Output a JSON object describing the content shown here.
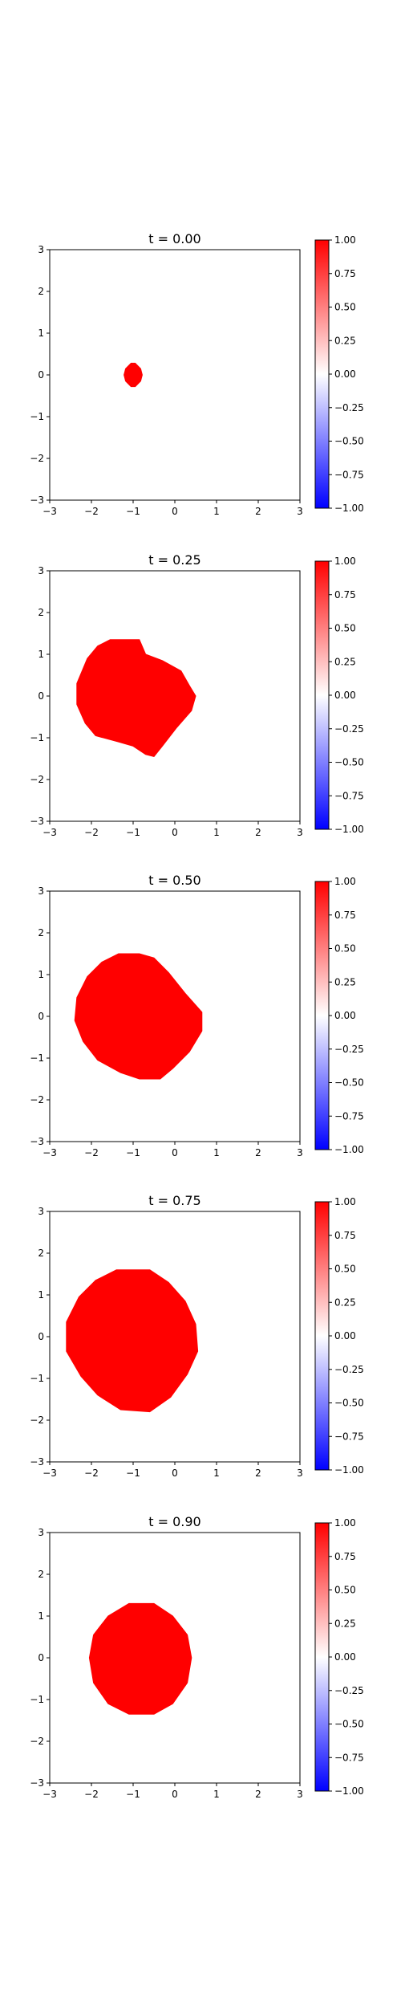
{
  "colorbar": {
    "cmap": [
      "#0000ff",
      "#ffffff",
      "#ff0000"
    ],
    "ticks": [
      1.0,
      0.75,
      0.5,
      0.25,
      0.0,
      -0.25,
      -0.5,
      -0.75,
      -1.0
    ],
    "tick_labels": [
      "1.00",
      "0.75",
      "0.50",
      "0.25",
      "0.00",
      "−0.25",
      "−0.50",
      "−0.75",
      "−1.00"
    ],
    "range": [
      -1.0,
      1.0
    ]
  },
  "chart_data": [
    {
      "type": "heatmap",
      "title": "t = 0.00",
      "xlim": [
        -3,
        3
      ],
      "ylim": [
        -3,
        3
      ],
      "xticks": [
        -3,
        -2,
        -1,
        0,
        1,
        2,
        3
      ],
      "yticks": [
        -3,
        -2,
        -1,
        0,
        1,
        2,
        3
      ],
      "xtick_labels": [
        "−3",
        "−2",
        "−1",
        "0",
        "1",
        "2",
        "3"
      ],
      "ytick_labels": [
        "−3",
        "−2",
        "−1",
        "0",
        "1",
        "2",
        "3"
      ],
      "value_inside": 1.0,
      "fill_color": "#ff0000",
      "region_outline": [
        [
          -1.05,
          0.28
        ],
        [
          -0.95,
          0.28
        ],
        [
          -0.82,
          0.15
        ],
        [
          -0.78,
          0
        ],
        [
          -0.82,
          -0.15
        ],
        [
          -0.95,
          -0.28
        ],
        [
          -1.05,
          -0.28
        ],
        [
          -1.18,
          -0.15
        ],
        [
          -1.22,
          0
        ],
        [
          -1.18,
          0.15
        ]
      ]
    },
    {
      "type": "heatmap",
      "title": "t = 0.25",
      "xlim": [
        -3,
        3
      ],
      "ylim": [
        -3,
        3
      ],
      "xticks": [
        -3,
        -2,
        -1,
        0,
        1,
        2,
        3
      ],
      "yticks": [
        -3,
        -2,
        -1,
        0,
        1,
        2,
        3
      ],
      "xtick_labels": [
        "−3",
        "−2",
        "−1",
        "0",
        "1",
        "2",
        "3"
      ],
      "ytick_labels": [
        "−3",
        "−2",
        "−1",
        "0",
        "1",
        "2",
        "3"
      ],
      "value_inside": 1.0,
      "fill_color": "#ff0000",
      "region_outline": [
        [
          -1.55,
          1.35
        ],
        [
          -0.85,
          1.35
        ],
        [
          -0.7,
          1.0
        ],
        [
          -0.3,
          0.85
        ],
        [
          0.15,
          0.6
        ],
        [
          0.35,
          0.25
        ],
        [
          0.5,
          0
        ],
        [
          0.4,
          -0.35
        ],
        [
          0.05,
          -0.75
        ],
        [
          -0.3,
          -1.2
        ],
        [
          -0.5,
          -1.45
        ],
        [
          -0.7,
          -1.4
        ],
        [
          -1.0,
          -1.2
        ],
        [
          -1.35,
          -1.1
        ],
        [
          -1.9,
          -0.95
        ],
        [
          -2.15,
          -0.65
        ],
        [
          -2.35,
          -0.2
        ],
        [
          -2.35,
          0.3
        ],
        [
          -2.1,
          0.9
        ],
        [
          -1.85,
          1.2
        ]
      ]
    },
    {
      "type": "heatmap",
      "title": "t = 0.50",
      "xlim": [
        -3,
        3
      ],
      "ylim": [
        -3,
        3
      ],
      "xticks": [
        -3,
        -2,
        -1,
        0,
        1,
        2,
        3
      ],
      "yticks": [
        -3,
        -2,
        -1,
        0,
        1,
        2,
        3
      ],
      "xtick_labels": [
        "−3",
        "−2",
        "−1",
        "0",
        "1",
        "2",
        "3"
      ],
      "ytick_labels": [
        "−3",
        "−2",
        "−1",
        "0",
        "1",
        "2",
        "3"
      ],
      "value_inside": 1.0,
      "fill_color": "#ff0000",
      "region_outline": [
        [
          -1.35,
          1.5
        ],
        [
          -0.85,
          1.5
        ],
        [
          -0.5,
          1.4
        ],
        [
          -0.15,
          1.05
        ],
        [
          0.25,
          0.55
        ],
        [
          0.65,
          0.1
        ],
        [
          0.65,
          -0.35
        ],
        [
          0.35,
          -0.85
        ],
        [
          -0.05,
          -1.25
        ],
        [
          -0.35,
          -1.5
        ],
        [
          -0.85,
          -1.5
        ],
        [
          -1.3,
          -1.35
        ],
        [
          -1.85,
          -1.05
        ],
        [
          -2.2,
          -0.6
        ],
        [
          -2.4,
          -0.1
        ],
        [
          -2.35,
          0.45
        ],
        [
          -2.1,
          0.95
        ],
        [
          -1.75,
          1.3
        ]
      ]
    },
    {
      "type": "heatmap",
      "title": "t = 0.75",
      "xlim": [
        -3,
        3
      ],
      "ylim": [
        -3,
        3
      ],
      "xticks": [
        -3,
        -2,
        -1,
        0,
        1,
        2,
        3
      ],
      "yticks": [
        -3,
        -2,
        -1,
        0,
        1,
        2,
        3
      ],
      "xtick_labels": [
        "−3",
        "−2",
        "−1",
        "0",
        "1",
        "2",
        "3"
      ],
      "ytick_labels": [
        "−3",
        "−2",
        "−1",
        "0",
        "1",
        "2",
        "3"
      ],
      "value_inside": 1.0,
      "fill_color": "#ff0000",
      "region_outline": [
        [
          -1.4,
          1.6
        ],
        [
          -0.6,
          1.6
        ],
        [
          -0.15,
          1.3
        ],
        [
          0.25,
          0.85
        ],
        [
          0.5,
          0.3
        ],
        [
          0.55,
          -0.35
        ],
        [
          0.3,
          -0.9
        ],
        [
          -0.1,
          -1.45
        ],
        [
          -0.6,
          -1.8
        ],
        [
          -1.3,
          -1.75
        ],
        [
          -1.85,
          -1.4
        ],
        [
          -2.25,
          -0.95
        ],
        [
          -2.6,
          -0.35
        ],
        [
          -2.6,
          0.35
        ],
        [
          -2.3,
          0.95
        ],
        [
          -1.9,
          1.35
        ]
      ]
    },
    {
      "type": "heatmap",
      "title": "t = 0.90",
      "xlim": [
        -3,
        3
      ],
      "ylim": [
        -3,
        3
      ],
      "xticks": [
        -3,
        -2,
        -1,
        0,
        1,
        2,
        3
      ],
      "yticks": [
        -3,
        -2,
        -1,
        0,
        1,
        2,
        3
      ],
      "xtick_labels": [
        "−3",
        "−2",
        "−1",
        "0",
        "1",
        "2",
        "3"
      ],
      "ytick_labels": [
        "−3",
        "−2",
        "−1",
        "0",
        "1",
        "2",
        "3"
      ],
      "value_inside": 1.0,
      "fill_color": "#ff0000",
      "region_outline": [
        [
          -1.1,
          1.3
        ],
        [
          -0.5,
          1.3
        ],
        [
          -0.05,
          1.0
        ],
        [
          0.3,
          0.55
        ],
        [
          0.4,
          0.0
        ],
        [
          0.3,
          -0.6
        ],
        [
          -0.05,
          -1.1
        ],
        [
          -0.5,
          -1.35
        ],
        [
          -1.1,
          -1.35
        ],
        [
          -1.6,
          -1.1
        ],
        [
          -1.95,
          -0.6
        ],
        [
          -2.05,
          0.0
        ],
        [
          -1.95,
          0.55
        ],
        [
          -1.6,
          1.0
        ]
      ]
    }
  ]
}
